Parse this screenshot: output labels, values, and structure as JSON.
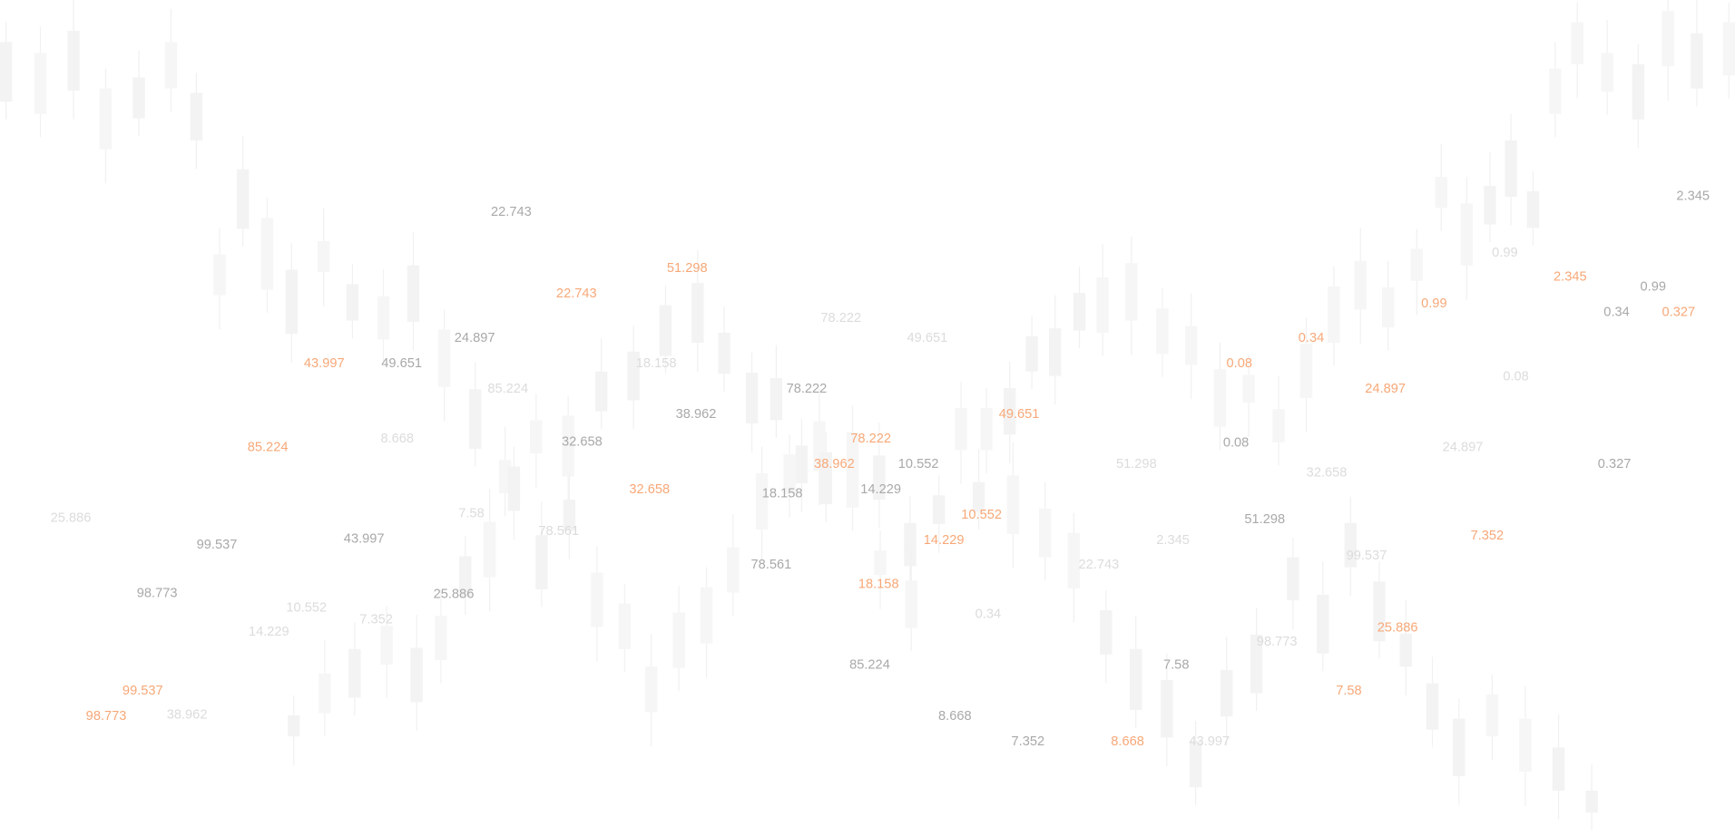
{
  "colors": {
    "dark_label": "#a9a9a9",
    "light_label": "#dcdcdc",
    "accent_label": "#f7a878",
    "candle": "#f3f3f3"
  },
  "labels": [
    {
      "text": "22.743",
      "tone": "dark"
    },
    {
      "text": "51.298",
      "tone": "orange"
    },
    {
      "text": "22.743",
      "tone": "orange"
    },
    {
      "text": "78.222",
      "tone": "light"
    },
    {
      "text": "43.997",
      "tone": "orange"
    },
    {
      "text": "24.897",
      "tone": "dark"
    },
    {
      "text": "49.651",
      "tone": "dark"
    },
    {
      "text": "49.651",
      "tone": "light"
    },
    {
      "text": "18.158",
      "tone": "light"
    },
    {
      "text": "85.224",
      "tone": "light"
    },
    {
      "text": "78.222",
      "tone": "dark"
    },
    {
      "text": "38.962",
      "tone": "dark"
    },
    {
      "text": "49.651",
      "tone": "orange"
    },
    {
      "text": "85.224",
      "tone": "orange"
    },
    {
      "text": "8.668",
      "tone": "light"
    },
    {
      "text": "32.658",
      "tone": "dark"
    },
    {
      "text": "78.222",
      "tone": "orange"
    },
    {
      "text": "38.962",
      "tone": "orange"
    },
    {
      "text": "10.552",
      "tone": "dark"
    },
    {
      "text": "32.658",
      "tone": "orange"
    },
    {
      "text": "18.158",
      "tone": "dark"
    },
    {
      "text": "14.229",
      "tone": "dark"
    },
    {
      "text": "25.886",
      "tone": "light"
    },
    {
      "text": "7.58",
      "tone": "light"
    },
    {
      "text": "78.561",
      "tone": "light"
    },
    {
      "text": "10.552",
      "tone": "orange"
    },
    {
      "text": "14.229",
      "tone": "orange"
    },
    {
      "text": "99.537",
      "tone": "dark"
    },
    {
      "text": "43.997",
      "tone": "dark"
    },
    {
      "text": "78.561",
      "tone": "dark"
    },
    {
      "text": "18.158",
      "tone": "orange"
    },
    {
      "text": "98.773",
      "tone": "dark"
    },
    {
      "text": "10.552",
      "tone": "light"
    },
    {
      "text": "25.886",
      "tone": "dark"
    },
    {
      "text": "7.352",
      "tone": "light"
    },
    {
      "text": "14.229",
      "tone": "light"
    },
    {
      "text": "0.34",
      "tone": "light"
    },
    {
      "text": "85.224",
      "tone": "dark"
    },
    {
      "text": "99.537",
      "tone": "orange"
    },
    {
      "text": "98.773",
      "tone": "orange"
    },
    {
      "text": "38.962",
      "tone": "light"
    },
    {
      "text": "8.668",
      "tone": "dark"
    },
    {
      "text": "7.352",
      "tone": "dark"
    },
    {
      "text": "8.668",
      "tone": "orange"
    },
    {
      "text": "43.997",
      "tone": "light"
    },
    {
      "text": "7.58",
      "tone": "dark"
    },
    {
      "text": "22.743",
      "tone": "light"
    },
    {
      "text": "2.345",
      "tone": "light"
    },
    {
      "text": "51.298",
      "tone": "light"
    },
    {
      "text": "51.298",
      "tone": "dark"
    },
    {
      "text": "98.773",
      "tone": "light"
    },
    {
      "text": "7.58",
      "tone": "orange"
    },
    {
      "text": "25.886",
      "tone": "orange"
    },
    {
      "text": "99.537",
      "tone": "light"
    },
    {
      "text": "7.352",
      "tone": "orange"
    },
    {
      "text": "32.658",
      "tone": "light"
    },
    {
      "text": "24.897",
      "tone": "light"
    },
    {
      "text": "0.327",
      "tone": "dark"
    },
    {
      "text": "0.08",
      "tone": "dark"
    },
    {
      "text": "0.08",
      "tone": "orange"
    },
    {
      "text": "0.34",
      "tone": "orange"
    },
    {
      "text": "24.897",
      "tone": "orange"
    },
    {
      "text": "0.08",
      "tone": "light"
    },
    {
      "text": "0.99",
      "tone": "orange"
    },
    {
      "text": "0.34",
      "tone": "dark"
    },
    {
      "text": "0.327",
      "tone": "orange"
    },
    {
      "text": "0.99",
      "tone": "dark"
    },
    {
      "text": "2.345",
      "tone": "orange"
    },
    {
      "text": "0.99",
      "tone": "light"
    },
    {
      "text": "2.345",
      "tone": "dark"
    }
  ]
}
